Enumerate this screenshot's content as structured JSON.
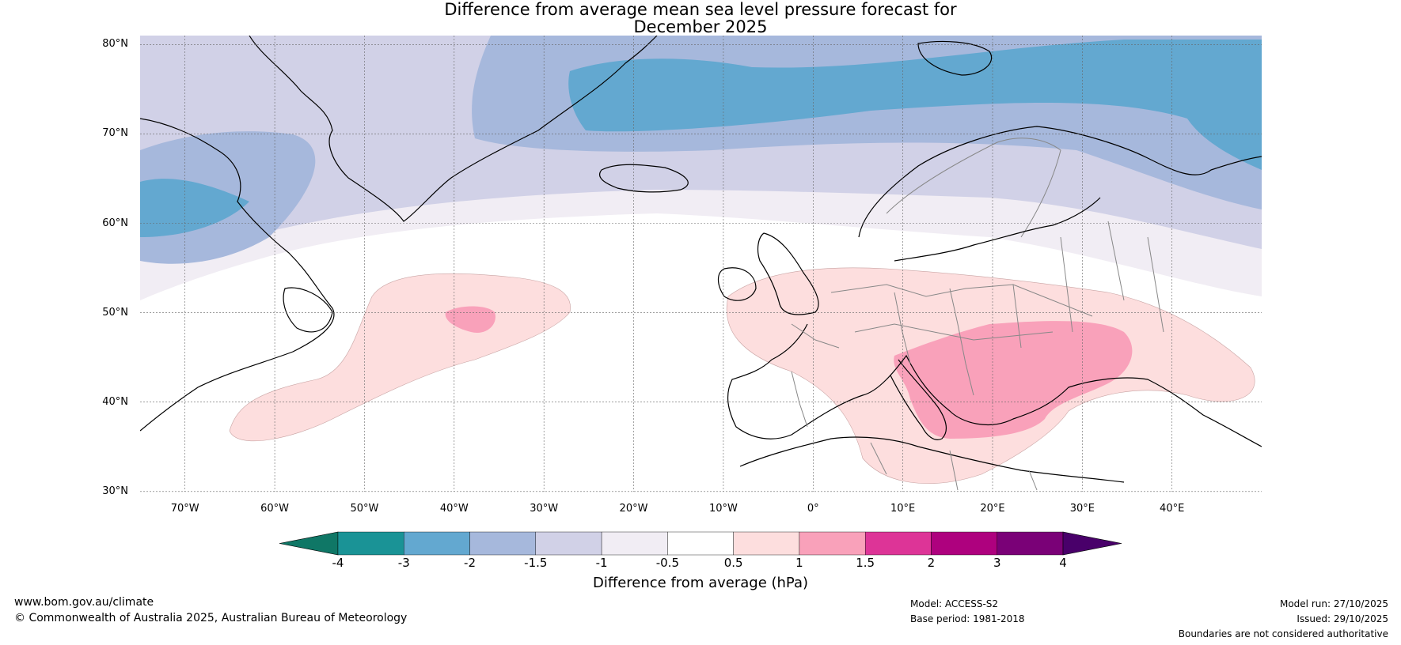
{
  "title": {
    "line1": "Difference from average mean sea level pressure forecast for",
    "line2": "December 2025"
  },
  "map": {
    "lat_labels": [
      "80°N",
      "70°N",
      "60°N",
      "50°N",
      "40°N",
      "30°N"
    ],
    "lon_labels": [
      "70°W",
      "60°W",
      "50°W",
      "40°W",
      "30°W",
      "20°W",
      "10°W",
      "0°",
      "10°E",
      "20°E",
      "30°E",
      "40°E"
    ],
    "extent": {
      "lon": [
        -75,
        50
      ],
      "lat": [
        30,
        81
      ]
    }
  },
  "colorbar": {
    "ticks": [
      "-4",
      "-3",
      "-2",
      "-1.5",
      "-1",
      "-0.5",
      "0.5",
      "1",
      "1.5",
      "2",
      "3",
      "4"
    ],
    "colors": [
      "#1a9396",
      "#63a8d0",
      "#a6b8dc",
      "#d1d1e7",
      "#f1edf4",
      "#ffffff",
      "#fddede",
      "#f9a1ba",
      "#dd3497",
      "#ae017e",
      "#7a0177"
    ],
    "under_color": "#0f7766",
    "over_color": "#49006a",
    "label": "Difference from average (hPa)"
  },
  "footer": {
    "website": "www.bom.gov.au/climate",
    "copyright": "© Commonwealth of Australia 2025, Australian Bureau of Meteorology",
    "model": "Model: ACCESS-S2",
    "base_period": "Base period: 1981-2018",
    "model_run": "Model run: 27/10/2025",
    "issued": "Issued: 29/10/2025",
    "disclaimer": "Boundaries are not considered authoritative"
  }
}
